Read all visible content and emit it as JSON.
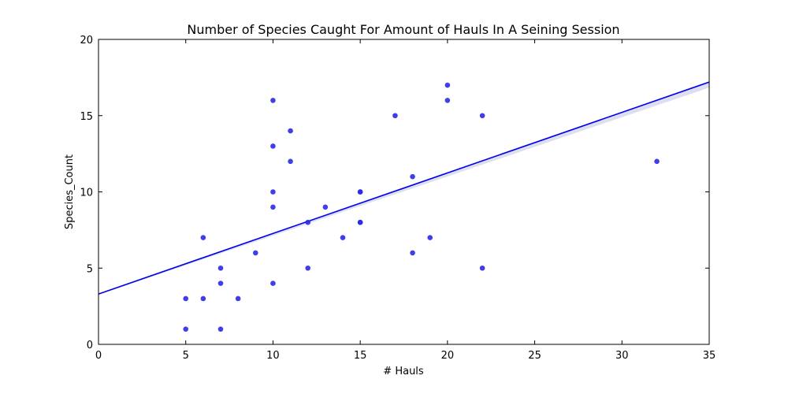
{
  "chart_data": {
    "type": "scatter",
    "title": "Number of Species Caught For Amount of Hauls In A Seining Session",
    "xlabel": "# Hauls",
    "ylabel": "Species_Count",
    "xlim": [
      0,
      35
    ],
    "ylim": [
      0,
      20
    ],
    "xticks": [
      "0",
      "5",
      "10",
      "15",
      "20",
      "25",
      "30",
      "35"
    ],
    "yticks": [
      "0",
      "5",
      "10",
      "15",
      "20"
    ],
    "grid": false,
    "legend": "none",
    "point_color": "#2a2ae8",
    "line_color": "#0000ee",
    "series": [
      {
        "points": [
          [
            5,
            1
          ],
          [
            5,
            3
          ],
          [
            6,
            3
          ],
          [
            6,
            7
          ],
          [
            7,
            1
          ],
          [
            7,
            4
          ],
          [
            7,
            5
          ],
          [
            8,
            3
          ],
          [
            9,
            6
          ],
          [
            10,
            4
          ],
          [
            10,
            9
          ],
          [
            10,
            10
          ],
          [
            10,
            13
          ],
          [
            10,
            16
          ],
          [
            11,
            12
          ],
          [
            11,
            14
          ],
          [
            12,
            5
          ],
          [
            12,
            8
          ],
          [
            13,
            9
          ],
          [
            14,
            7
          ],
          [
            15,
            8
          ],
          [
            15,
            8
          ],
          [
            15,
            10
          ],
          [
            15,
            10
          ],
          [
            17,
            15
          ],
          [
            18,
            6
          ],
          [
            18,
            11
          ],
          [
            19,
            7
          ],
          [
            20,
            16
          ],
          [
            20,
            17
          ],
          [
            22,
            5
          ],
          [
            22,
            15
          ],
          [
            32,
            12
          ]
        ]
      }
    ],
    "regression": {
      "x": [
        0,
        35
      ],
      "y": [
        3.3,
        17.2
      ]
    }
  }
}
